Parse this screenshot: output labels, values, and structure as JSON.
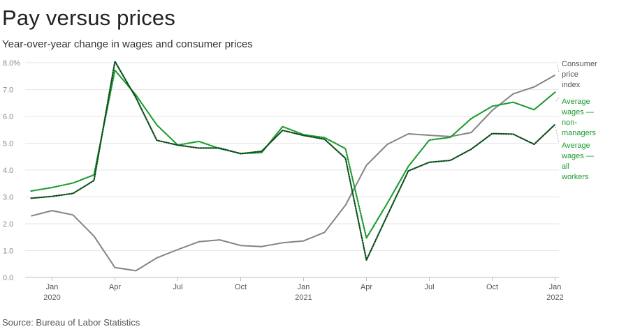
{
  "header": {
    "title": "Pay versus prices",
    "subtitle": "Year-over-year change in wages and consumer prices"
  },
  "footer": {
    "source": "Source: Bureau of Labor Statistics"
  },
  "colors": {
    "cpi": "#848484",
    "nonmanagers": "#1a9a2e",
    "allworkers": "#0c4f1c",
    "grid": "#e6e6e6",
    "axis": "#bdbdbd"
  },
  "chart_data": {
    "type": "line",
    "title": "Pay versus prices",
    "subtitle": "Year-over-year change in wages and consumer prices",
    "ylim": [
      0,
      8
    ],
    "y_ticks": [
      0,
      1,
      2,
      3,
      4,
      5,
      6,
      7,
      8
    ],
    "y_tick_labels": [
      "0.0",
      "1.0",
      "2.0",
      "3.0",
      "4.0",
      "5.0",
      "6.0",
      "7.0",
      "8.0%"
    ],
    "x": [
      "2019-12",
      "2020-01",
      "2020-02",
      "2020-03",
      "2020-04",
      "2020-05",
      "2020-06",
      "2020-07",
      "2020-08",
      "2020-09",
      "2020-10",
      "2020-11",
      "2020-12",
      "2021-01",
      "2021-02",
      "2021-03",
      "2021-04",
      "2021-05",
      "2021-06",
      "2021-07",
      "2021-08",
      "2021-09",
      "2021-10",
      "2021-11",
      "2021-12",
      "2022-01"
    ],
    "x_ticks": [
      {
        "month": "2020-01",
        "label": "Jan",
        "year": "2020"
      },
      {
        "month": "2020-04",
        "label": "Apr",
        "year": ""
      },
      {
        "month": "2020-07",
        "label": "Jul",
        "year": ""
      },
      {
        "month": "2020-10",
        "label": "Oct",
        "year": ""
      },
      {
        "month": "2021-01",
        "label": "Jan",
        "year": "2021"
      },
      {
        "month": "2021-04",
        "label": "Apr",
        "year": ""
      },
      {
        "month": "2021-07",
        "label": "Jul",
        "year": ""
      },
      {
        "month": "2021-10",
        "label": "Oct",
        "year": ""
      },
      {
        "month": "2022-01",
        "label": "Jan",
        "year": "2022"
      }
    ],
    "series": [
      {
        "key": "cpi",
        "name": "Consumer price index",
        "label_lines": [
          "Consumer",
          "price",
          "index"
        ],
        "style": "solid",
        "values": [
          2.29,
          2.49,
          2.33,
          1.54,
          0.37,
          0.25,
          0.73,
          1.04,
          1.33,
          1.4,
          1.19,
          1.15,
          1.29,
          1.36,
          1.68,
          2.69,
          4.18,
          4.96,
          5.35,
          5.3,
          5.25,
          5.4,
          6.22,
          6.84,
          7.1,
          7.54
        ]
      },
      {
        "key": "nonmanagers",
        "name": "Average wages — non-managers",
        "label_lines": [
          "Average",
          "wages —",
          "non-",
          "managers"
        ],
        "style": "dotted",
        "values": [
          3.22,
          3.35,
          3.52,
          3.82,
          7.72,
          6.8,
          5.68,
          4.93,
          5.07,
          4.8,
          4.62,
          4.65,
          5.62,
          5.32,
          5.21,
          4.8,
          1.47,
          2.77,
          4.14,
          5.12,
          5.22,
          5.92,
          6.38,
          6.53,
          6.25,
          6.9
        ]
      },
      {
        "key": "allworkers",
        "name": "Average wages — all workers",
        "label_lines": [
          "Average",
          "wages —",
          "all",
          "workers"
        ],
        "style": "dotted",
        "values": [
          2.95,
          3.02,
          3.13,
          3.61,
          8.05,
          6.7,
          5.11,
          4.93,
          4.82,
          4.82,
          4.61,
          4.7,
          5.48,
          5.29,
          5.15,
          4.44,
          0.65,
          2.32,
          3.97,
          4.29,
          4.36,
          4.78,
          5.36,
          5.34,
          4.96,
          5.7
        ]
      }
    ],
    "grid": true,
    "legend": "direct labels at right end of lines"
  }
}
